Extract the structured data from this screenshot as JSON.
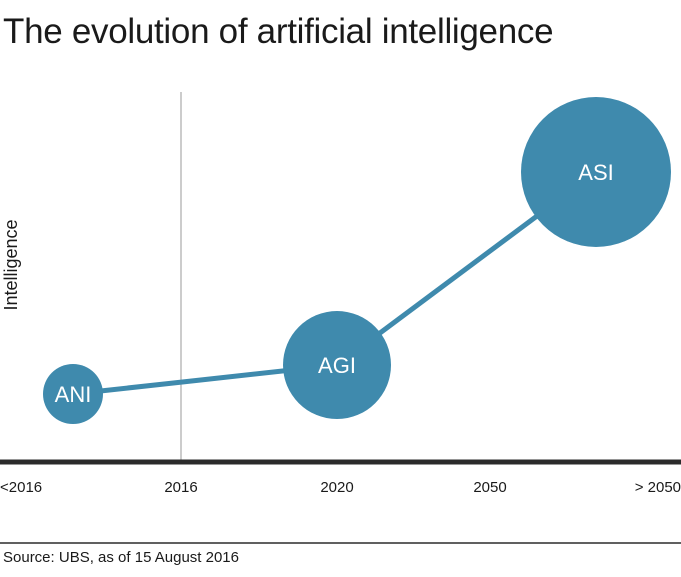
{
  "title": "The evolution of artificial intelligence",
  "source": "Source: UBS, as of 15 August 2016",
  "colors": {
    "bubble": "#3f8aad",
    "line": "#3f8aad",
    "axis": "#2b2b2b",
    "divider": "#9a9a9a",
    "bubble_text": "#ffffff"
  },
  "chart_data": {
    "type": "scatter",
    "title": "The evolution of artificial intelligence",
    "xlabel": "",
    "ylabel": "Intelligence",
    "categories": [
      "<2016",
      "2016",
      "2020",
      "2050",
      "> 2050"
    ],
    "grid": false,
    "points": [
      {
        "label": "ANI",
        "x": "<2016",
        "y": 1.0,
        "size": 1.0
      },
      {
        "label": "AGI",
        "x": "2020",
        "y": 1.6,
        "size": 1.8
      },
      {
        "label": "ASI",
        "x": "> 2050",
        "y": 5.6,
        "size": 2.5
      }
    ]
  }
}
